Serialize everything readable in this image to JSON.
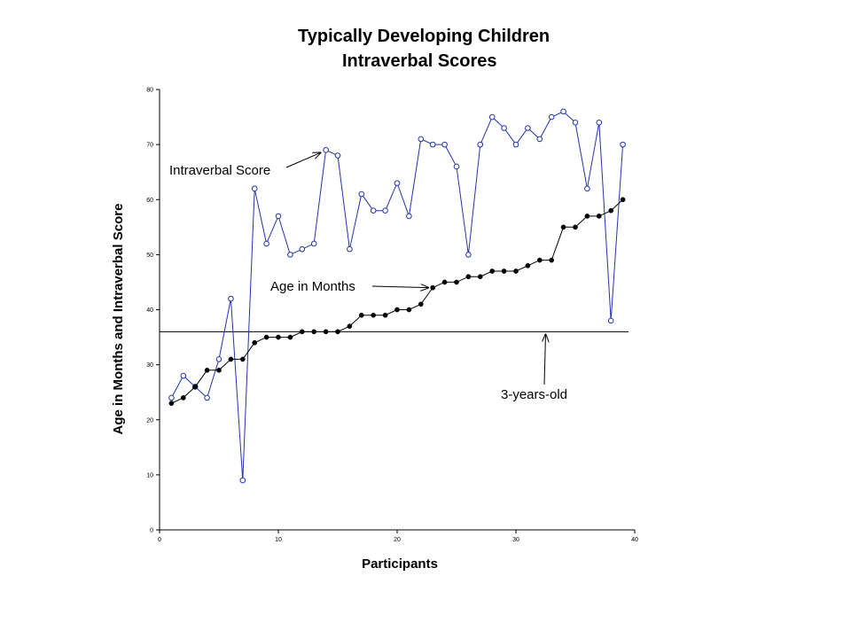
{
  "chart_data": {
    "type": "line",
    "title": [
      "Typically Developing Children",
      "Intraverbal Scores"
    ],
    "xlabel": "Participants",
    "ylabel": "Age in Months and Intraverbal Score",
    "xlim": [
      0,
      40
    ],
    "ylim": [
      0,
      80
    ],
    "xticks": [
      0,
      10,
      20,
      30,
      40
    ],
    "yticks": [
      0,
      10,
      20,
      30,
      40,
      50,
      60,
      70,
      80
    ],
    "grid": false,
    "legend": "none",
    "x": [
      1,
      2,
      3,
      4,
      5,
      6,
      7,
      8,
      9,
      10,
      11,
      12,
      13,
      14,
      15,
      16,
      17,
      18,
      19,
      20,
      21,
      22,
      23,
      24,
      25,
      26,
      27,
      28,
      29,
      30,
      31,
      32,
      33,
      34,
      35,
      36,
      37,
      38,
      39
    ],
    "series": [
      {
        "key": "intraverbal",
        "color": "#2233aa",
        "marker": "open-circle",
        "values": [
          24,
          28,
          26,
          24,
          31,
          42,
          9,
          62,
          52,
          57,
          50,
          51,
          52,
          69,
          68,
          51,
          61,
          58,
          58,
          63,
          57,
          71,
          70,
          70,
          66,
          50,
          70,
          75,
          73,
          70,
          73,
          71,
          75,
          76,
          74,
          62,
          74,
          38,
          70
        ]
      },
      {
        "key": "age",
        "color": "#000000",
        "marker": "filled-circle",
        "values": [
          23,
          24,
          26,
          29,
          29,
          31,
          31,
          34,
          35,
          35,
          35,
          36,
          36,
          36,
          36,
          37,
          39,
          39,
          39,
          40,
          40,
          41,
          44,
          45,
          45,
          46,
          46,
          47,
          47,
          47,
          48,
          49,
          49,
          55,
          55,
          57,
          57,
          58,
          60
        ]
      }
    ],
    "reference_line": {
      "y": 36,
      "color": "#000000"
    },
    "annotations": [
      {
        "key": "intraverbal_label",
        "text": "Intraverbal Score",
        "points_to": [
          14,
          69
        ]
      },
      {
        "key": "age_label",
        "text": "Age in Months",
        "points_to": [
          23,
          44
        ]
      },
      {
        "key": "three_label",
        "text": "3-years-old",
        "points_to": [
          32.5,
          36
        ]
      }
    ]
  }
}
